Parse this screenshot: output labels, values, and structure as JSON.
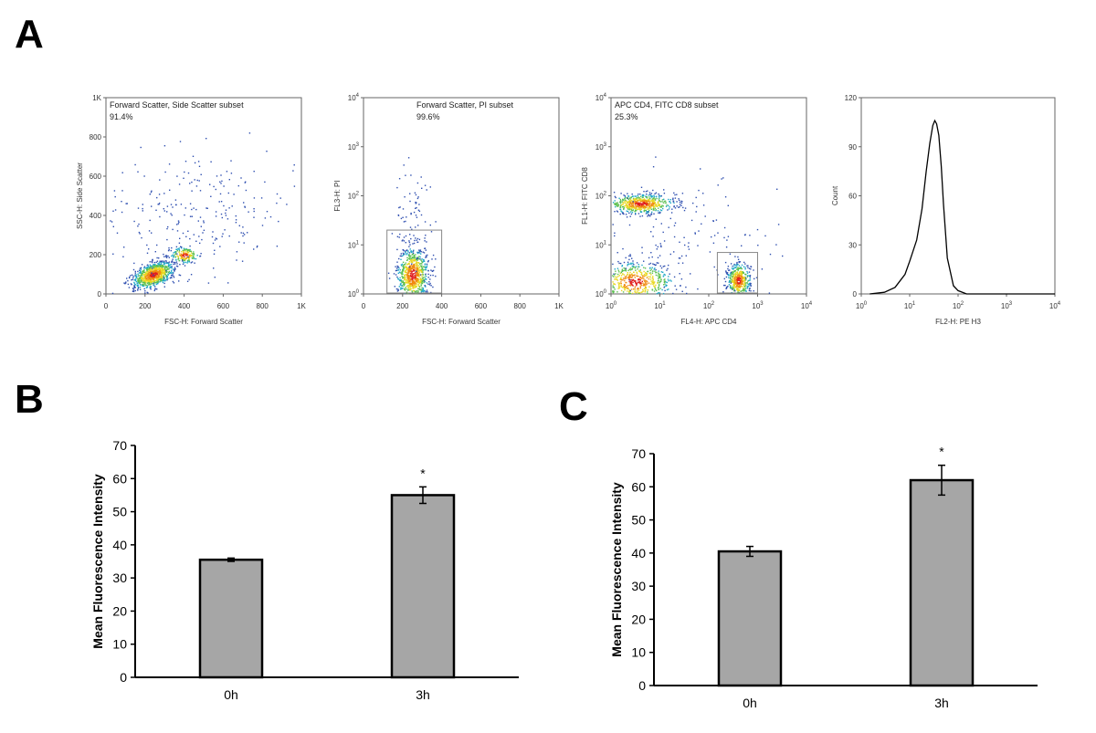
{
  "panel_labels": {
    "a": "A",
    "b": "B",
    "c": "C"
  },
  "colors": {
    "bar_fill": "#a6a6a6",
    "dot_blue": "#2f4fb0",
    "axis": "#000000",
    "frame": "#666666",
    "gate": "#888888"
  },
  "chart_data": [
    {
      "type": "scatter",
      "panel": "A",
      "title": "Forward Scatter, Side Scatter subset",
      "gate_percent": "91.4%",
      "xlabel": "FSC-H: Forward Scatter",
      "ylabel": "SSC-H: Side Scatter",
      "xscale": "linear",
      "yscale": "linear",
      "xlim": [
        0,
        1000
      ],
      "ylim": [
        0,
        1000
      ],
      "x_ticks": [
        "0",
        "200",
        "400",
        "600",
        "800",
        "1K"
      ],
      "y_ticks": [
        "0",
        "200",
        "400",
        "600",
        "800",
        "1K"
      ],
      "populations": [
        {
          "name": "main",
          "x_center": 240,
          "y_center": 100,
          "x_spread": 60,
          "y_spread": 45,
          "n": 900,
          "rotation_deg": 35
        },
        {
          "name": "upper-right",
          "x_center": 400,
          "y_center": 200,
          "x_spread": 35,
          "y_spread": 35,
          "n": 180
        },
        {
          "name": "background",
          "x_center": 450,
          "y_center": 420,
          "x_spread": 260,
          "y_spread": 260,
          "n": 260
        }
      ]
    },
    {
      "type": "scatter",
      "panel": "A",
      "title": "Forward Scatter, PI subset",
      "gate_percent": "99.6%",
      "xlabel": "FSC-H: Forward Scatter",
      "ylabel": "FL3-H: PI",
      "xscale": "linear",
      "yscale": "log",
      "xlim": [
        0,
        1000
      ],
      "ylim": [
        1,
        10000
      ],
      "x_ticks": [
        "0",
        "200",
        "400",
        "600",
        "800",
        "1K"
      ],
      "y_ticks": [
        "10^0",
        "10^1",
        "10^2",
        "10^3",
        "10^4"
      ],
      "gate": {
        "x": [
          120,
          400
        ],
        "y": [
          1,
          20
        ]
      },
      "populations": [
        {
          "name": "main",
          "x_center": 250,
          "y_center": 2.5,
          "x_spread": 40,
          "y_spread_decades": 0.28,
          "n": 800
        },
        {
          "name": "tail",
          "x_center": 260,
          "y_center": 30,
          "x_spread": 50,
          "y_spread_decades": 0.6,
          "n": 90
        }
      ]
    },
    {
      "type": "scatter",
      "panel": "A",
      "title": "APC CD4, FITC CD8 subset",
      "gate_percent": "25.3%",
      "xlabel": "FL4-H: APC CD4",
      "ylabel": "FL1-H: FITC CD8",
      "xscale": "log",
      "yscale": "log",
      "xlim": [
        1,
        10000
      ],
      "ylim": [
        1,
        10000
      ],
      "x_ticks": [
        "10^0",
        "10^1",
        "10^2",
        "10^3",
        "10^4"
      ],
      "y_ticks": [
        "10^0",
        "10^1",
        "10^2",
        "10^3",
        "10^4"
      ],
      "gate": {
        "x": [
          150,
          1000
        ],
        "y": [
          1,
          7
        ]
      },
      "populations": [
        {
          "name": "CD8+",
          "x_center": 4,
          "y_center": 70,
          "x_spread_decades": 0.35,
          "y_spread_decades": 0.1,
          "n": 600
        },
        {
          "name": "double-negative",
          "x_center": 3,
          "y_center": 1.8,
          "x_spread_decades": 0.4,
          "y_spread_decades": 0.2,
          "n": 600
        },
        {
          "name": "CD4+",
          "x_center": 400,
          "y_center": 1.9,
          "x_spread_decades": 0.12,
          "y_spread_decades": 0.18,
          "n": 450
        },
        {
          "name": "scatter",
          "x_center": 30,
          "y_center": 8,
          "x_spread_decades": 1.0,
          "y_spread_decades": 0.7,
          "n": 160
        }
      ]
    },
    {
      "type": "line",
      "panel": "A",
      "title": "",
      "xlabel": "FL2-H: PE H3",
      "ylabel": "Count",
      "xscale": "log",
      "yscale": "linear",
      "xlim": [
        1,
        10000
      ],
      "ylim": [
        0,
        120
      ],
      "x_ticks": [
        "10^0",
        "10^1",
        "10^2",
        "10^3",
        "10^4"
      ],
      "y_ticks": [
        "0",
        "30",
        "60",
        "90",
        "120"
      ],
      "x": [
        1.5,
        3,
        5,
        8,
        10,
        14,
        18,
        22,
        26,
        30,
        33,
        36,
        40,
        45,
        50,
        60,
        80,
        100,
        150,
        10000
      ],
      "y": [
        0,
        1,
        4,
        12,
        20,
        33,
        52,
        75,
        92,
        103,
        106,
        104,
        97,
        78,
        55,
        22,
        5,
        2,
        0,
        0
      ]
    },
    {
      "type": "bar",
      "panel": "B",
      "categories": [
        "0h",
        "3h"
      ],
      "values": [
        35.5,
        55
      ],
      "errors": [
        0.5,
        2.5
      ],
      "significance": [
        "",
        "*"
      ],
      "ylabel": "Mean Fluorescence Intensity",
      "ylim": [
        0,
        70
      ],
      "y_ticks": [
        "0",
        "10",
        "20",
        "30",
        "40",
        "50",
        "60",
        "70"
      ]
    },
    {
      "type": "bar",
      "panel": "C",
      "categories": [
        "0h",
        "3h"
      ],
      "values": [
        40.5,
        62
      ],
      "errors": [
        1.5,
        4.5
      ],
      "significance": [
        "",
        "*"
      ],
      "ylabel": "Mean Fluorescence Intensity",
      "ylim": [
        0,
        70
      ],
      "y_ticks": [
        "0",
        "10",
        "20",
        "30",
        "40",
        "50",
        "60",
        "70"
      ]
    }
  ]
}
